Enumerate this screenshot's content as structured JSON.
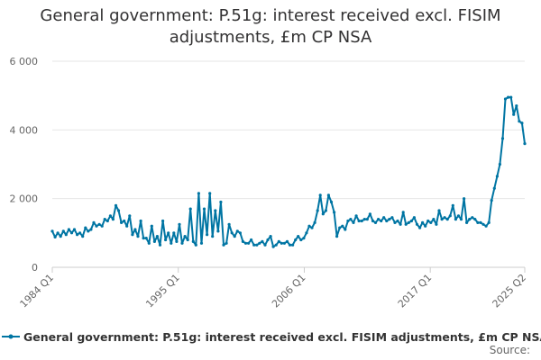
{
  "chart_data": {
    "type": "line",
    "title_line1": "General government: P.51g: interest received excl. FISIM",
    "title_line2": "adjustments, £m CP NSA",
    "xlabel": "",
    "ylabel": "",
    "ylim": [
      0,
      6000
    ],
    "y_ticks": [
      0,
      2000,
      4000,
      6000
    ],
    "y_tick_labels": [
      "0",
      "2 000",
      "4 000",
      "6 000"
    ],
    "x_tick_labels": [
      "1984 Q1",
      "1995 Q1",
      "2006 Q1",
      "2017 Q1",
      "2025 Q2"
    ],
    "x_range": [
      "1984 Q1",
      "2025 Q2"
    ],
    "grid": "horizontal",
    "legend_position": "bottom",
    "line_color": "#0075a3",
    "series": [
      {
        "name": "General government: P.51g: interest received excl. FISIM adjustments, £m CP NSA",
        "start": "1984 Q1",
        "frequency": "quarterly",
        "values": [
          1050,
          880,
          1000,
          900,
          1050,
          950,
          1100,
          1000,
          1100,
          950,
          1000,
          900,
          1150,
          1050,
          1100,
          1300,
          1200,
          1250,
          1200,
          1400,
          1350,
          1500,
          1400,
          1800,
          1650,
          1300,
          1350,
          1200,
          1500,
          950,
          1100,
          900,
          1350,
          850,
          850,
          700,
          1200,
          750,
          900,
          650,
          1350,
          800,
          1000,
          700,
          1000,
          750,
          1250,
          700,
          900,
          800,
          1700,
          750,
          650,
          2150,
          700,
          1700,
          950,
          2150,
          900,
          1650,
          1050,
          1900,
          650,
          700,
          1250,
          1000,
          900,
          1050,
          1000,
          750,
          700,
          700,
          800,
          650,
          650,
          700,
          750,
          650,
          800,
          900,
          600,
          650,
          750,
          700,
          700,
          750,
          650,
          650,
          800,
          900,
          800,
          850,
          1000,
          1200,
          1150,
          1300,
          1650,
          2100,
          1550,
          1650,
          2100,
          1900,
          1600,
          900,
          1150,
          1200,
          1100,
          1350,
          1400,
          1300,
          1500,
          1350,
          1350,
          1400,
          1400,
          1550,
          1350,
          1300,
          1400,
          1350,
          1450,
          1350,
          1400,
          1450,
          1300,
          1350,
          1250,
          1600,
          1250,
          1300,
          1350,
          1450,
          1250,
          1150,
          1300,
          1200,
          1350,
          1300,
          1400,
          1250,
          1650,
          1400,
          1450,
          1400,
          1500,
          1800,
          1400,
          1500,
          1400,
          2000,
          1300,
          1400,
          1450,
          1400,
          1300,
          1300,
          1250,
          1200,
          1300,
          1950,
          2300,
          2650,
          3000,
          3750,
          4900,
          4950,
          4950,
          4450,
          4700,
          4250,
          4200,
          3600
        ]
      }
    ]
  },
  "legend_label": "General government: P.51g: interest received excl. FISIM adjustments, £m CP NSA",
  "source_label": "Source:"
}
